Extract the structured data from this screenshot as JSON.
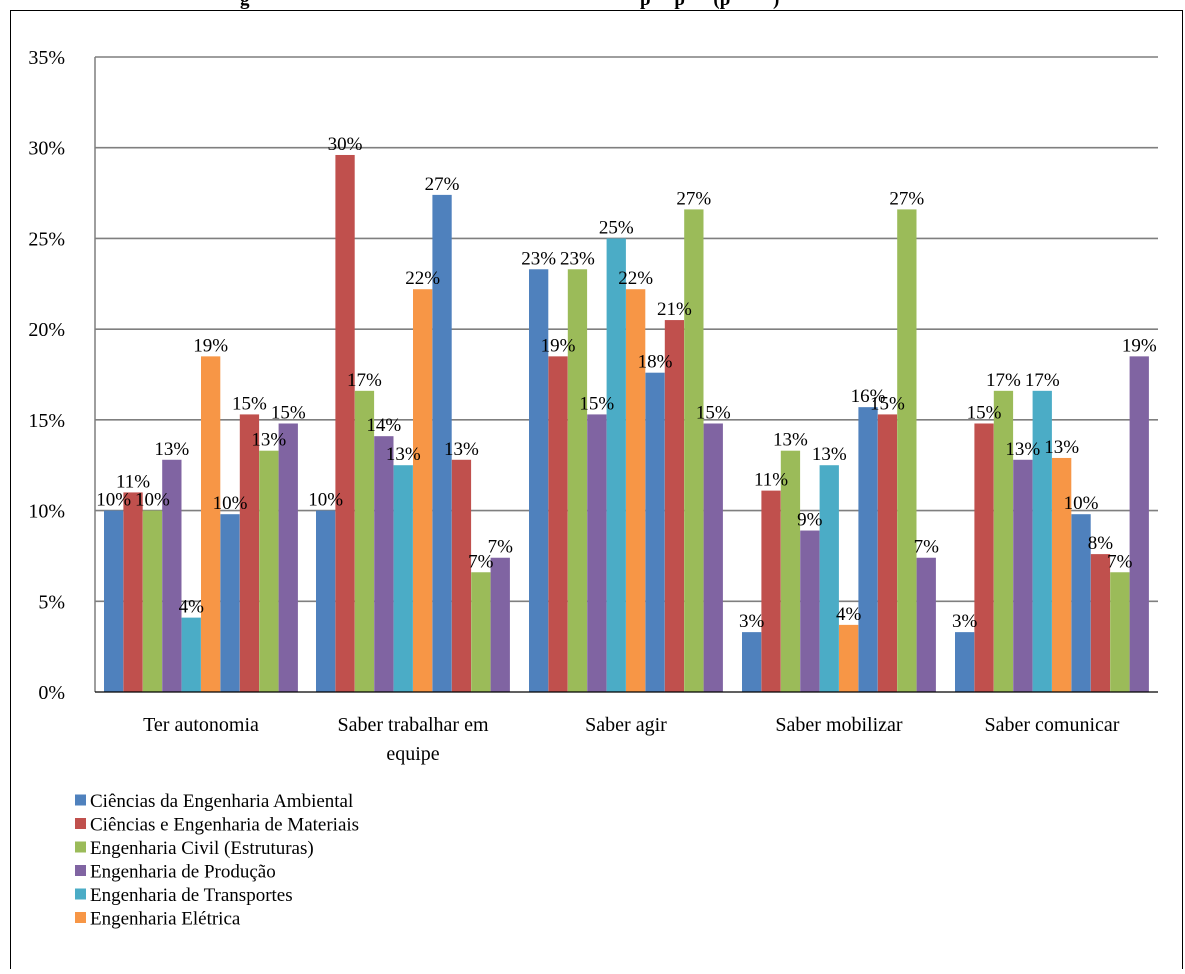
{
  "heading_fragment_left": "g",
  "heading_fragment_right": "p     p      (p         )",
  "chart_data": {
    "type": "bar",
    "title": "",
    "xlabel": "",
    "ylabel": "",
    "ylim": [
      0,
      35
    ],
    "yticks": [
      0,
      5,
      10,
      15,
      20,
      25,
      30,
      35
    ],
    "ytick_labels": [
      "0%",
      "5%",
      "10%",
      "15%",
      "20%",
      "25%",
      "30%",
      "35%"
    ],
    "grid": "horizontal",
    "legend_position": "bottom-left",
    "categories": [
      [
        "Ter autonomia"
      ],
      [
        "Saber trabalhar em",
        "equipe"
      ],
      [
        "Saber agir"
      ],
      [
        "Saber mobilizar"
      ],
      [
        "Saber comunicar"
      ]
    ],
    "series": [
      {
        "name": "Ciências da Engenharia Ambiental",
        "color": "#4F81BD"
      },
      {
        "name": "Ciências e Engenharia de Materiais",
        "color": "#C0504D"
      },
      {
        "name": "Engenharia Civil (Estruturas)",
        "color": "#9BBB59"
      },
      {
        "name": "Engenharia de Produção",
        "color": "#8064A2"
      },
      {
        "name": "Engenharia de Transportes",
        "color": "#4BACC6"
      },
      {
        "name": "Engenharia Elétrica",
        "color": "#F79646"
      }
    ],
    "groups": [
      {
        "bars": [
          {
            "series": 0,
            "value": 10,
            "label": "10%"
          },
          {
            "series": 1,
            "value": 11,
            "label": "11%"
          },
          {
            "series": 2,
            "value": 10,
            "label": "10%"
          },
          {
            "series": 3,
            "value": 12.8,
            "label": "13%"
          },
          {
            "series": 4,
            "value": 4.1,
            "label": "4%"
          },
          {
            "series": 5,
            "value": 18.5,
            "label": "19%"
          },
          {
            "series": 0,
            "value": 9.8,
            "label": "10%"
          },
          {
            "series": 1,
            "value": 15.3,
            "label": "15%"
          },
          {
            "series": 2,
            "value": 13.3,
            "label": "13%"
          },
          {
            "series": 3,
            "value": 14.8,
            "label": "15%"
          }
        ]
      },
      {
        "bars": [
          {
            "series": 0,
            "value": 10,
            "label": "10%"
          },
          {
            "series": 1,
            "value": 29.6,
            "label": "30%"
          },
          {
            "series": 2,
            "value": 16.6,
            "label": "17%"
          },
          {
            "series": 3,
            "value": 14.1,
            "label": "14%"
          },
          {
            "series": 4,
            "value": 12.5,
            "label": "13%"
          },
          {
            "series": 5,
            "value": 22.2,
            "label": "22%"
          },
          {
            "series": 0,
            "value": 27.4,
            "label": "27%"
          },
          {
            "series": 1,
            "value": 12.8,
            "label": "13%"
          },
          {
            "series": 2,
            "value": 6.6,
            "label": "7%"
          },
          {
            "series": 3,
            "value": 7.4,
            "label": "7%"
          }
        ]
      },
      {
        "bars": [
          {
            "series": 0,
            "value": 23.3,
            "label": "23%"
          },
          {
            "series": 1,
            "value": 18.5,
            "label": "19%"
          },
          {
            "series": 2,
            "value": 23.3,
            "label": "23%"
          },
          {
            "series": 3,
            "value": 15.3,
            "label": "15%"
          },
          {
            "series": 4,
            "value": 25,
            "label": "25%"
          },
          {
            "series": 5,
            "value": 22.2,
            "label": "22%"
          },
          {
            "series": 0,
            "value": 17.6,
            "label": "18%"
          },
          {
            "series": 1,
            "value": 20.5,
            "label": "21%"
          },
          {
            "series": 2,
            "value": 26.6,
            "label": "27%"
          },
          {
            "series": 3,
            "value": 14.8,
            "label": "15%"
          }
        ]
      },
      {
        "bars": [
          {
            "series": 0,
            "value": 3.3,
            "label": "3%"
          },
          {
            "series": 1,
            "value": 11.1,
            "label": "11%"
          },
          {
            "series": 2,
            "value": 13.3,
            "label": "13%"
          },
          {
            "series": 3,
            "value": 8.9,
            "label": "9%"
          },
          {
            "series": 4,
            "value": 12.5,
            "label": "13%"
          },
          {
            "series": 5,
            "value": 3.7,
            "label": "4%"
          },
          {
            "series": 0,
            "value": 15.7,
            "label": "16%"
          },
          {
            "series": 1,
            "value": 15.3,
            "label": "15%"
          },
          {
            "series": 2,
            "value": 26.6,
            "label": "27%"
          },
          {
            "series": 3,
            "value": 7.4,
            "label": "7%"
          }
        ]
      },
      {
        "bars": [
          {
            "series": 0,
            "value": 3.3,
            "label": "3%"
          },
          {
            "series": 1,
            "value": 14.8,
            "label": "15%"
          },
          {
            "series": 2,
            "value": 16.6,
            "label": "17%"
          },
          {
            "series": 3,
            "value": 12.8,
            "label": "13%"
          },
          {
            "series": 4,
            "value": 16.6,
            "label": "17%"
          },
          {
            "series": 5,
            "value": 12.9,
            "label": "13%"
          },
          {
            "series": 0,
            "value": 9.8,
            "label": "10%"
          },
          {
            "series": 1,
            "value": 7.6,
            "label": "8%"
          },
          {
            "series": 2,
            "value": 6.6,
            "label": "7%"
          },
          {
            "series": 3,
            "value": 18.5,
            "label": "19%"
          }
        ]
      }
    ]
  }
}
